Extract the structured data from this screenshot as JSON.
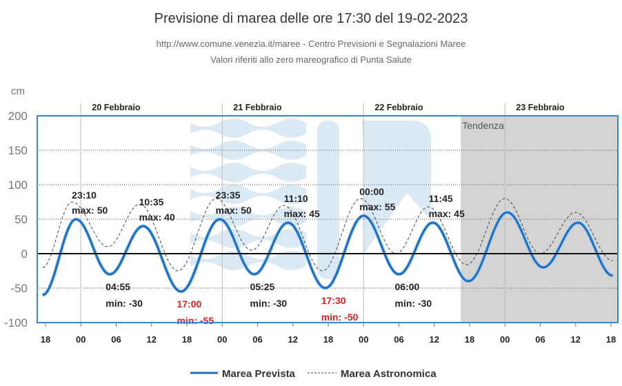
{
  "chart_data": {
    "type": "line",
    "title": "Previsione di marea delle ore 17:30 del 19-02-2023",
    "subtitle_1": "http://www.comune.venezia.it/maree - Centro Previsioni e Segnalazioni Maree",
    "subtitle_2": "Valori riferiti allo zero mareografico di Punta Salute",
    "ylabel": "cm",
    "ylim": [
      -100,
      200
    ],
    "yticks": [
      200,
      150,
      100,
      50,
      0,
      -50,
      -100
    ],
    "x_unit": "hours since 19-02-2023 18:00",
    "xlim": [
      -0.5,
      96.3
    ],
    "xticks": [
      "18",
      "00",
      "06",
      "12",
      "18",
      "00",
      "06",
      "12",
      "18",
      "00",
      "06",
      "12",
      "18",
      "00",
      "06",
      "12",
      "18"
    ],
    "day_labels": [
      "20 Febbraio",
      "21 Febbraio",
      "22 Febbraio",
      "23 Febbraio"
    ],
    "trend_label": "Tendenza",
    "trend_start": 70.5,
    "legend": [
      "Marea Prevista",
      "Marea Astronomica"
    ],
    "legend_position": "bottom-center",
    "colors": {
      "forecast": "#1f6fc0",
      "astronomical": "#444444",
      "border": "#3a86c8",
      "trend_bg": "#d4d4d4",
      "watermark": "#dbe9f4",
      "alert": "#e02020"
    },
    "series": [
      {
        "name": "Marea Prevista",
        "extremes": [
          [
            -0.5,
            -60
          ],
          [
            5.17,
            50
          ],
          [
            10.92,
            -30
          ],
          [
            16.58,
            40
          ],
          [
            23,
            -55
          ],
          [
            29.58,
            50
          ],
          [
            35.42,
            -30
          ],
          [
            41.17,
            45
          ],
          [
            47.5,
            -50
          ],
          [
            54,
            55
          ],
          [
            60,
            -30
          ],
          [
            65.75,
            45
          ],
          [
            71.8,
            -40
          ],
          [
            78.4,
            60
          ],
          [
            84.5,
            -20
          ],
          [
            90.4,
            45
          ],
          [
            96.3,
            -32
          ]
        ]
      },
      {
        "name": "Marea Astronomica",
        "extremes": [
          [
            -0.5,
            -20
          ],
          [
            4.5,
            75
          ],
          [
            10.6,
            10
          ],
          [
            16,
            72
          ],
          [
            22.5,
            -25
          ],
          [
            29,
            80
          ],
          [
            35,
            5
          ],
          [
            40.5,
            70
          ],
          [
            47,
            -25
          ],
          [
            53.5,
            80
          ],
          [
            59.5,
            0
          ],
          [
            65,
            68
          ],
          [
            71.5,
            -16
          ],
          [
            78,
            80
          ],
          [
            84,
            0
          ],
          [
            90,
            60
          ],
          [
            96.3,
            -10
          ]
        ]
      }
    ],
    "annotations": [
      {
        "time": "23:10",
        "label": "max: 50",
        "t": 5.17,
        "v": 50,
        "kind": "max",
        "alert": false
      },
      {
        "time": "04:55",
        "label": "min: -30",
        "t": 10.92,
        "v": -30,
        "kind": "min",
        "alert": false
      },
      {
        "time": "10:35",
        "label": "max: 40",
        "t": 16.58,
        "v": 40,
        "kind": "max",
        "alert": false
      },
      {
        "time": "17:00",
        "label": "min: -55",
        "t": 23,
        "v": -55,
        "kind": "min",
        "alert": true
      },
      {
        "time": "23:35",
        "label": "max: 50",
        "t": 29.58,
        "v": 50,
        "kind": "max",
        "alert": false
      },
      {
        "time": "05:25",
        "label": "min: -30",
        "t": 35.42,
        "v": -30,
        "kind": "min",
        "alert": false
      },
      {
        "time": "11:10",
        "label": "max: 45",
        "t": 41.17,
        "v": 45,
        "kind": "max",
        "alert": false
      },
      {
        "time": "17:30",
        "label": "min: -50",
        "t": 47.5,
        "v": -50,
        "kind": "min",
        "alert": true
      },
      {
        "time": "00:00",
        "label": "max: 55",
        "t": 54,
        "v": 55,
        "kind": "max",
        "alert": false
      },
      {
        "time": "06:00",
        "label": "min: -30",
        "t": 60,
        "v": -30,
        "kind": "min",
        "alert": false
      },
      {
        "time": "11:45",
        "label": "max: 45",
        "t": 65.75,
        "v": 45,
        "kind": "max",
        "alert": false
      }
    ]
  }
}
